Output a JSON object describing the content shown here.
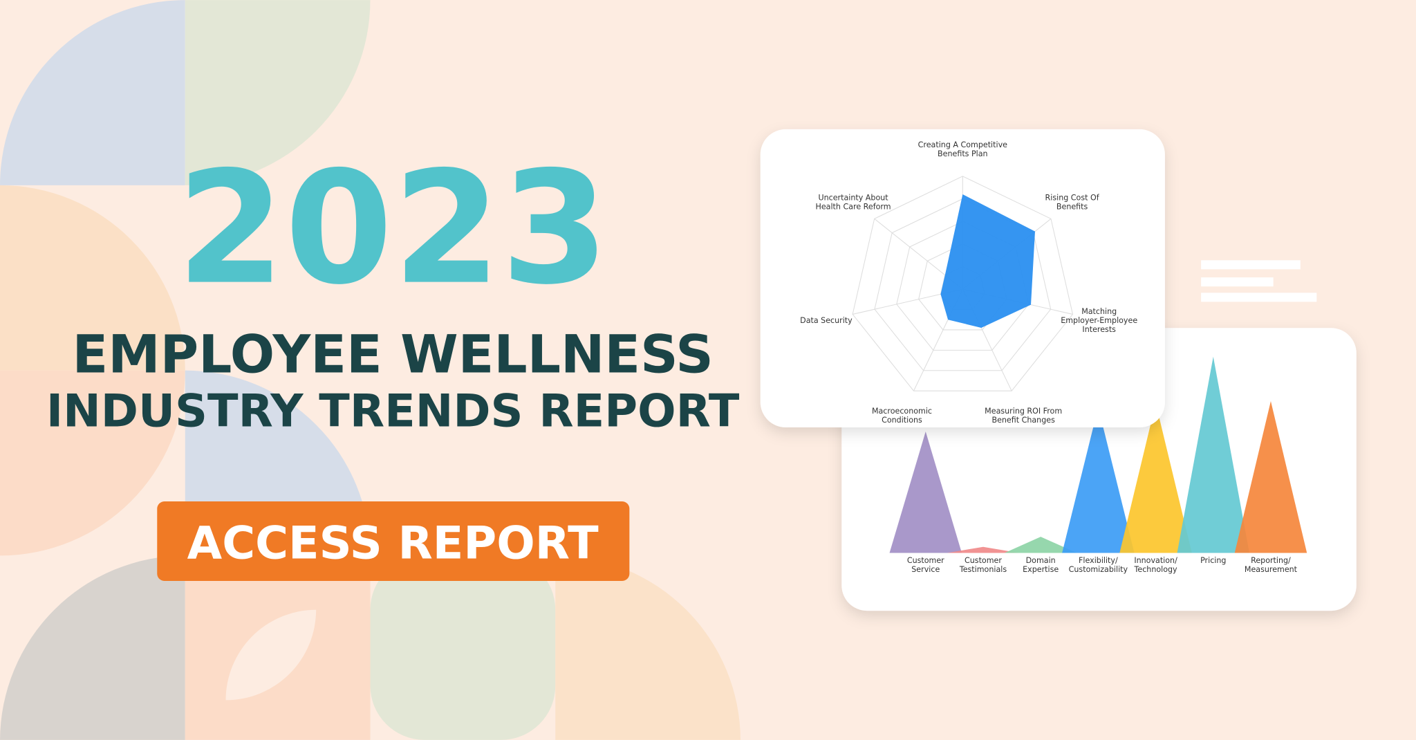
{
  "header": {
    "year": "2023",
    "title_line_1": "EMPLOYEE WELLNESS",
    "title_line_2": "INDUSTRY TRENDS REPORT"
  },
  "button": {
    "label": "ACCESS REPORT"
  },
  "chart_data": [
    {
      "type": "radar",
      "color": "#2a8ff0",
      "ylim": [
        0,
        5
      ],
      "categories": [
        [
          "Creating A Competitive",
          "Benefits Plan"
        ],
        [
          "Rising Cost Of",
          "Benefits"
        ],
        [
          "Matching",
          "Employer-Employee",
          "Interests"
        ],
        [
          "Measuring ROI From",
          "Benefit Changes"
        ],
        [
          "Macroeconomic",
          "Conditions"
        ],
        [
          "Data Security"
        ],
        [
          "Uncertainty About",
          "Health Care Reform"
        ]
      ],
      "values": [
        4.2,
        4.1,
        3.1,
        1.9,
        1.5,
        1.0,
        1.0
      ]
    },
    {
      "type": "peak",
      "ylim": [
        0,
        100
      ],
      "categories": [
        [
          "Customer",
          "Service"
        ],
        [
          "Customer",
          "Testimonials"
        ],
        [
          "Domain",
          "Expertise"
        ],
        [
          "Flexibility/",
          "Customizability"
        ],
        [
          "Innovation/",
          "Technology"
        ],
        [
          "Pricing"
        ],
        [
          "Reporting/",
          "Measurement"
        ]
      ],
      "colors": [
        "#a28fc5",
        "#f08a8a",
        "#8dd4a6",
        "#3c9cf5",
        "#fcc62c",
        "#64c9d3",
        "#f5873c"
      ],
      "values": [
        60,
        3,
        8,
        72,
        74,
        97,
        75
      ]
    }
  ]
}
